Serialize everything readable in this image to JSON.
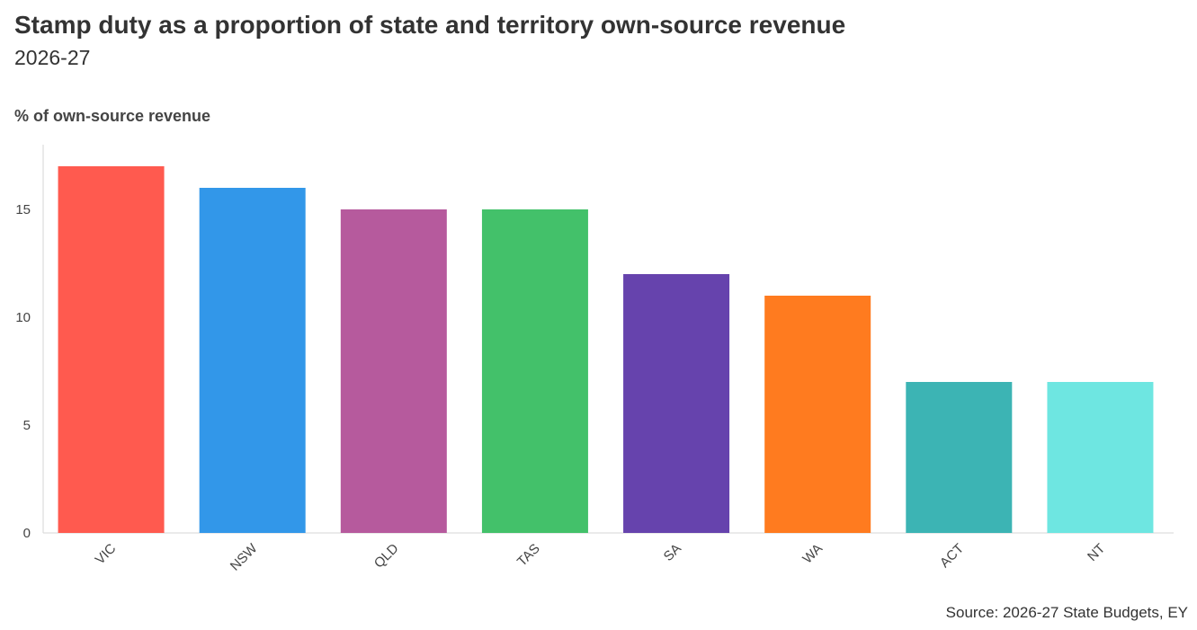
{
  "chart_data": {
    "type": "bar",
    "title": "Stamp duty as a proportion of state and territory own-source revenue",
    "subtitle": "2026-27",
    "ylabel": "% of own-source revenue",
    "xlabel": "",
    "source": "Source: 2026-27 State Budgets, EY",
    "categories": [
      "VIC",
      "NSW",
      "QLD",
      "TAS",
      "SA",
      "WA",
      "ACT",
      "NT"
    ],
    "values": [
      17,
      16,
      15,
      15,
      12,
      11,
      7,
      7
    ],
    "colors": [
      "#ff5a4f",
      "#3297e9",
      "#b65a9d",
      "#43c16a",
      "#6643ad",
      "#ff7b1f",
      "#3cb4b4",
      "#6ee6e1"
    ],
    "ylim": [
      0,
      18
    ],
    "yticks": [
      0,
      5,
      10,
      15
    ],
    "grid": false,
    "legend": "none"
  }
}
